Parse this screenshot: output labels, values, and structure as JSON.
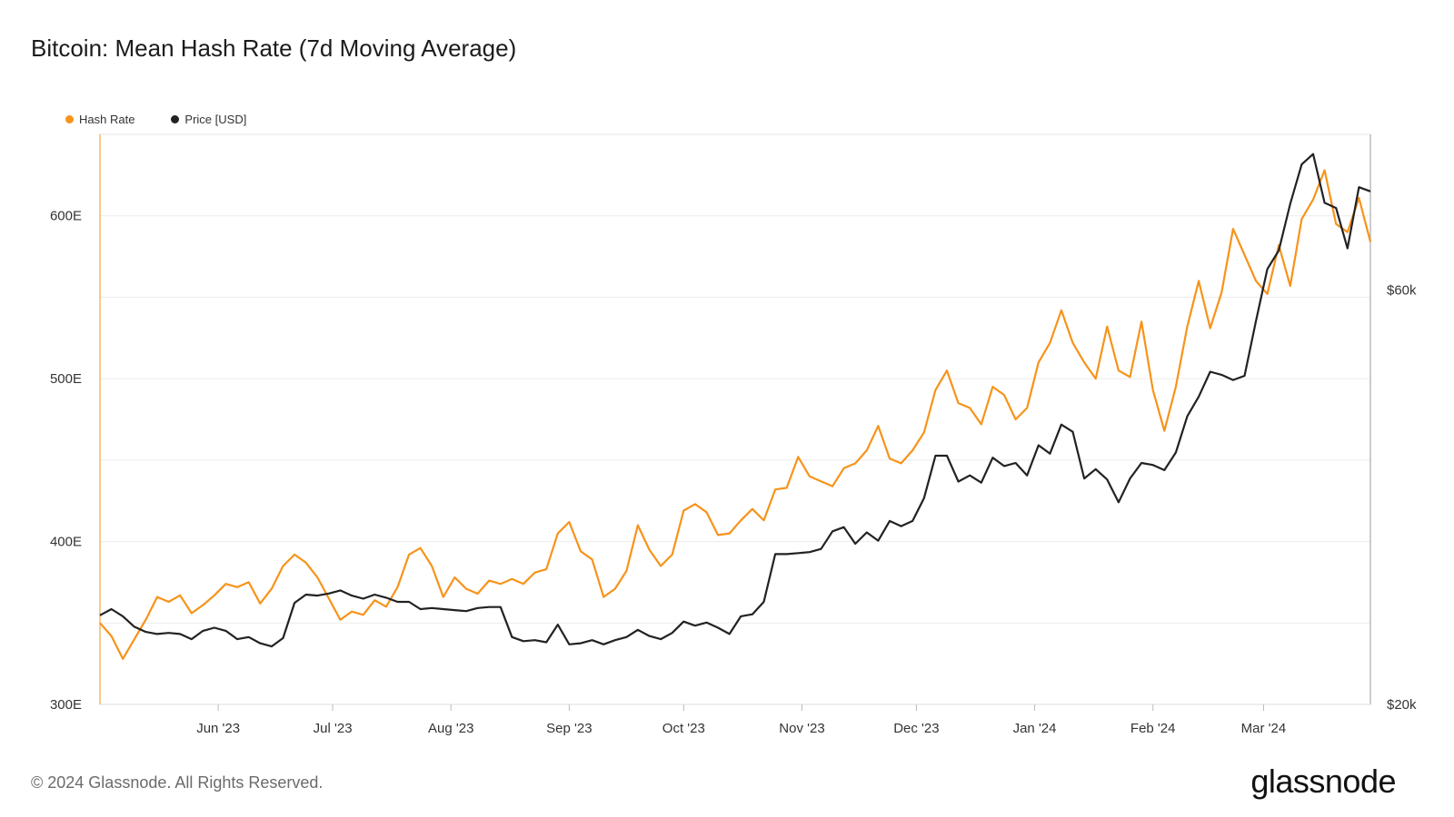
{
  "header": {
    "title": "Bitcoin: Mean Hash Rate (7d Moving Average)"
  },
  "legend": [
    {
      "label": "Hash Rate",
      "color": "#f7931a"
    },
    {
      "label": "Price [USD]",
      "color": "#222222"
    }
  ],
  "footer": {
    "copyright": "© 2024 Glassnode. All Rights Reserved.",
    "brand": "glassnode"
  },
  "chart_data": {
    "type": "line",
    "title": "Bitcoin: Mean Hash Rate (7d Moving Average)",
    "x_axis": {
      "start": "2023-05-01",
      "end": "2024-03-29",
      "ticks": [
        {
          "label": "Jun '23",
          "date": "2023-06-01"
        },
        {
          "label": "Jul '23",
          "date": "2023-07-01"
        },
        {
          "label": "Aug '23",
          "date": "2023-08-01"
        },
        {
          "label": "Sep '23",
          "date": "2023-09-01"
        },
        {
          "label": "Oct '23",
          "date": "2023-10-01"
        },
        {
          "label": "Nov '23",
          "date": "2023-11-01"
        },
        {
          "label": "Dec '23",
          "date": "2023-12-01"
        },
        {
          "label": "Jan '24",
          "date": "2024-01-01"
        },
        {
          "label": "Feb '24",
          "date": "2024-02-01"
        },
        {
          "label": "Mar '24",
          "date": "2024-03-01"
        }
      ]
    },
    "y_left": {
      "range": [
        300,
        650
      ],
      "ticks": [
        {
          "label": "300E",
          "value": 300
        },
        {
          "label": "400E",
          "value": 400
        },
        {
          "label": "500E",
          "value": 500
        },
        {
          "label": "600E",
          "value": 600
        }
      ]
    },
    "y_right": {
      "range": [
        20000,
        75000
      ],
      "ticks": [
        {
          "label": "$20k",
          "value": 20000
        },
        {
          "label": "$60k",
          "value": 60000
        }
      ]
    },
    "series": [
      {
        "name": "Hash Rate",
        "axis": "left",
        "color": "#f7931a",
        "points": [
          [
            "2023-05-01",
            350
          ],
          [
            "2023-05-04",
            342
          ],
          [
            "2023-05-07",
            328
          ],
          [
            "2023-05-10",
            340
          ],
          [
            "2023-05-13",
            352
          ],
          [
            "2023-05-16",
            366
          ],
          [
            "2023-05-19",
            363
          ],
          [
            "2023-05-22",
            367
          ],
          [
            "2023-05-25",
            356
          ],
          [
            "2023-05-28",
            361
          ],
          [
            "2023-05-31",
            367
          ],
          [
            "2023-06-03",
            374
          ],
          [
            "2023-06-06",
            372
          ],
          [
            "2023-06-09",
            375
          ],
          [
            "2023-06-12",
            362
          ],
          [
            "2023-06-15",
            371
          ],
          [
            "2023-06-18",
            385
          ],
          [
            "2023-06-21",
            392
          ],
          [
            "2023-06-24",
            387
          ],
          [
            "2023-06-27",
            378
          ],
          [
            "2023-06-30",
            365
          ],
          [
            "2023-07-03",
            352
          ],
          [
            "2023-07-06",
            357
          ],
          [
            "2023-07-09",
            355
          ],
          [
            "2023-07-12",
            364
          ],
          [
            "2023-07-15",
            360
          ],
          [
            "2023-07-18",
            372
          ],
          [
            "2023-07-21",
            392
          ],
          [
            "2023-07-24",
            396
          ],
          [
            "2023-07-27",
            385
          ],
          [
            "2023-07-30",
            366
          ],
          [
            "2023-08-02",
            378
          ],
          [
            "2023-08-05",
            371
          ],
          [
            "2023-08-08",
            368
          ],
          [
            "2023-08-11",
            376
          ],
          [
            "2023-08-14",
            374
          ],
          [
            "2023-08-17",
            377
          ],
          [
            "2023-08-20",
            374
          ],
          [
            "2023-08-23",
            381
          ],
          [
            "2023-08-26",
            383
          ],
          [
            "2023-08-29",
            405
          ],
          [
            "2023-09-01",
            412
          ],
          [
            "2023-09-04",
            394
          ],
          [
            "2023-09-07",
            389
          ],
          [
            "2023-09-10",
            366
          ],
          [
            "2023-09-13",
            371
          ],
          [
            "2023-09-16",
            382
          ],
          [
            "2023-09-19",
            410
          ],
          [
            "2023-09-22",
            395
          ],
          [
            "2023-09-25",
            385
          ],
          [
            "2023-09-28",
            392
          ],
          [
            "2023-10-01",
            419
          ],
          [
            "2023-10-04",
            423
          ],
          [
            "2023-10-07",
            418
          ],
          [
            "2023-10-10",
            404
          ],
          [
            "2023-10-13",
            405
          ],
          [
            "2023-10-16",
            413
          ],
          [
            "2023-10-19",
            420
          ],
          [
            "2023-10-22",
            413
          ],
          [
            "2023-10-25",
            432
          ],
          [
            "2023-10-28",
            433
          ],
          [
            "2023-10-31",
            452
          ],
          [
            "2023-11-03",
            440
          ],
          [
            "2023-11-06",
            437
          ],
          [
            "2023-11-09",
            434
          ],
          [
            "2023-11-12",
            445
          ],
          [
            "2023-11-15",
            448
          ],
          [
            "2023-11-18",
            456
          ],
          [
            "2023-11-21",
            471
          ],
          [
            "2023-11-24",
            451
          ],
          [
            "2023-11-27",
            448
          ],
          [
            "2023-11-30",
            456
          ],
          [
            "2023-12-03",
            467
          ],
          [
            "2023-12-06",
            493
          ],
          [
            "2023-12-09",
            505
          ],
          [
            "2023-12-12",
            485
          ],
          [
            "2023-12-15",
            482
          ],
          [
            "2023-12-18",
            472
          ],
          [
            "2023-12-21",
            495
          ],
          [
            "2023-12-24",
            490
          ],
          [
            "2023-12-27",
            475
          ],
          [
            "2023-12-30",
            482
          ],
          [
            "2024-01-02",
            510
          ],
          [
            "2024-01-05",
            522
          ],
          [
            "2024-01-08",
            542
          ],
          [
            "2024-01-11",
            522
          ],
          [
            "2024-01-14",
            510
          ],
          [
            "2024-01-17",
            500
          ],
          [
            "2024-01-20",
            532
          ],
          [
            "2024-01-23",
            505
          ],
          [
            "2024-01-26",
            501
          ],
          [
            "2024-01-29",
            535
          ],
          [
            "2024-02-01",
            493
          ],
          [
            "2024-02-04",
            468
          ],
          [
            "2024-02-07",
            495
          ],
          [
            "2024-02-10",
            532
          ],
          [
            "2024-02-13",
            560
          ],
          [
            "2024-02-16",
            531
          ],
          [
            "2024-02-19",
            553
          ],
          [
            "2024-02-22",
            592
          ],
          [
            "2024-02-25",
            576
          ],
          [
            "2024-02-28",
            560
          ],
          [
            "2024-03-02",
            552
          ],
          [
            "2024-03-05",
            582
          ],
          [
            "2024-03-08",
            557
          ],
          [
            "2024-03-11",
            598
          ],
          [
            "2024-03-14",
            610
          ],
          [
            "2024-03-17",
            628
          ],
          [
            "2024-03-20",
            595
          ],
          [
            "2024-03-23",
            590
          ],
          [
            "2024-03-26",
            611
          ],
          [
            "2024-03-29",
            584
          ]
        ]
      },
      {
        "name": "Price [USD]",
        "axis": "right",
        "color": "#222222",
        "points": [
          [
            "2023-05-01",
            28600
          ],
          [
            "2023-05-04",
            29200
          ],
          [
            "2023-05-07",
            28500
          ],
          [
            "2023-05-10",
            27500
          ],
          [
            "2023-05-13",
            27000
          ],
          [
            "2023-05-16",
            26800
          ],
          [
            "2023-05-19",
            26900
          ],
          [
            "2023-05-22",
            26800
          ],
          [
            "2023-05-25",
            26300
          ],
          [
            "2023-05-28",
            27100
          ],
          [
            "2023-05-31",
            27400
          ],
          [
            "2023-06-03",
            27100
          ],
          [
            "2023-06-06",
            26300
          ],
          [
            "2023-06-09",
            26500
          ],
          [
            "2023-06-12",
            25900
          ],
          [
            "2023-06-15",
            25600
          ],
          [
            "2023-06-18",
            26400
          ],
          [
            "2023-06-21",
            29800
          ],
          [
            "2023-06-24",
            30600
          ],
          [
            "2023-06-27",
            30500
          ],
          [
            "2023-06-30",
            30700
          ],
          [
            "2023-07-03",
            31000
          ],
          [
            "2023-07-06",
            30500
          ],
          [
            "2023-07-09",
            30200
          ],
          [
            "2023-07-12",
            30600
          ],
          [
            "2023-07-15",
            30300
          ],
          [
            "2023-07-18",
            29900
          ],
          [
            "2023-07-21",
            29900
          ],
          [
            "2023-07-24",
            29200
          ],
          [
            "2023-07-27",
            29300
          ],
          [
            "2023-07-30",
            29200
          ],
          [
            "2023-08-02",
            29100
          ],
          [
            "2023-08-05",
            29000
          ],
          [
            "2023-08-08",
            29300
          ],
          [
            "2023-08-11",
            29400
          ],
          [
            "2023-08-14",
            29400
          ],
          [
            "2023-08-17",
            26500
          ],
          [
            "2023-08-20",
            26100
          ],
          [
            "2023-08-23",
            26200
          ],
          [
            "2023-08-26",
            26000
          ],
          [
            "2023-08-29",
            27700
          ],
          [
            "2023-09-01",
            25800
          ],
          [
            "2023-09-04",
            25900
          ],
          [
            "2023-09-07",
            26200
          ],
          [
            "2023-09-10",
            25800
          ],
          [
            "2023-09-13",
            26200
          ],
          [
            "2023-09-16",
            26500
          ],
          [
            "2023-09-19",
            27200
          ],
          [
            "2023-09-22",
            26600
          ],
          [
            "2023-09-25",
            26300
          ],
          [
            "2023-09-28",
            26900
          ],
          [
            "2023-10-01",
            28000
          ],
          [
            "2023-10-04",
            27600
          ],
          [
            "2023-10-07",
            27900
          ],
          [
            "2023-10-10",
            27400
          ],
          [
            "2023-10-13",
            26800
          ],
          [
            "2023-10-16",
            28500
          ],
          [
            "2023-10-19",
            28700
          ],
          [
            "2023-10-22",
            29900
          ],
          [
            "2023-10-25",
            34500
          ],
          [
            "2023-10-28",
            34500
          ],
          [
            "2023-10-31",
            34600
          ],
          [
            "2023-11-03",
            34700
          ],
          [
            "2023-11-06",
            35000
          ],
          [
            "2023-11-09",
            36700
          ],
          [
            "2023-11-12",
            37100
          ],
          [
            "2023-11-15",
            35500
          ],
          [
            "2023-11-18",
            36600
          ],
          [
            "2023-11-21",
            35800
          ],
          [
            "2023-11-24",
            37700
          ],
          [
            "2023-11-27",
            37200
          ],
          [
            "2023-11-30",
            37700
          ],
          [
            "2023-12-03",
            39900
          ],
          [
            "2023-12-06",
            44000
          ],
          [
            "2023-12-09",
            44000
          ],
          [
            "2023-12-12",
            41500
          ],
          [
            "2023-12-15",
            42100
          ],
          [
            "2023-12-18",
            41400
          ],
          [
            "2023-12-21",
            43800
          ],
          [
            "2023-12-24",
            43000
          ],
          [
            "2023-12-27",
            43300
          ],
          [
            "2023-12-30",
            42100
          ],
          [
            "2024-01-02",
            45000
          ],
          [
            "2024-01-05",
            44200
          ],
          [
            "2024-01-08",
            47000
          ],
          [
            "2024-01-11",
            46300
          ],
          [
            "2024-01-14",
            41800
          ],
          [
            "2024-01-17",
            42700
          ],
          [
            "2024-01-20",
            41700
          ],
          [
            "2024-01-23",
            39500
          ],
          [
            "2024-01-26",
            41800
          ],
          [
            "2024-01-29",
            43300
          ],
          [
            "2024-02-01",
            43100
          ],
          [
            "2024-02-04",
            42600
          ],
          [
            "2024-02-07",
            44300
          ],
          [
            "2024-02-10",
            47800
          ],
          [
            "2024-02-13",
            49700
          ],
          [
            "2024-02-16",
            52100
          ],
          [
            "2024-02-19",
            51800
          ],
          [
            "2024-02-22",
            51300
          ],
          [
            "2024-02-25",
            51700
          ],
          [
            "2024-02-28",
            57000
          ],
          [
            "2024-03-02",
            62000
          ],
          [
            "2024-03-05",
            63800
          ],
          [
            "2024-03-08",
            68300
          ],
          [
            "2024-03-11",
            72100
          ],
          [
            "2024-03-14",
            73100
          ],
          [
            "2024-03-17",
            68400
          ],
          [
            "2024-03-20",
            67900
          ],
          [
            "2024-03-23",
            64000
          ],
          [
            "2024-03-26",
            69900
          ],
          [
            "2024-03-29",
            69500
          ]
        ]
      }
    ]
  }
}
